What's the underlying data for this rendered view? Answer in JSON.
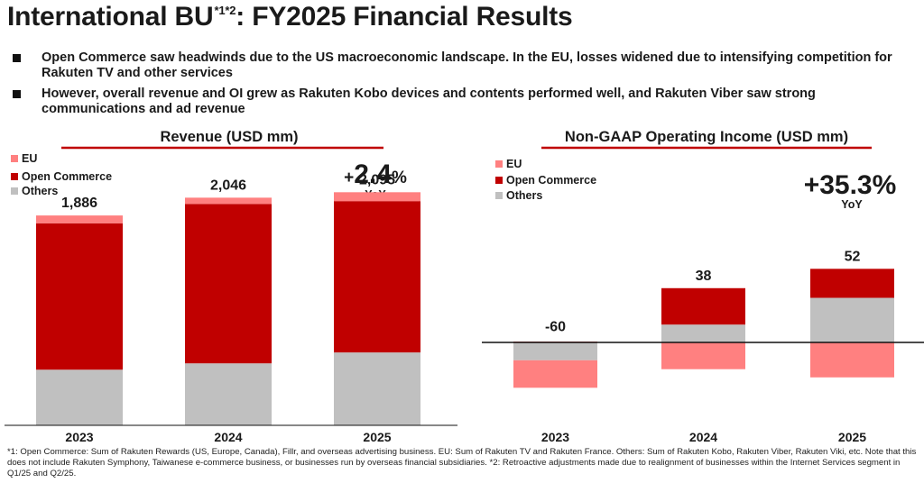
{
  "title": {
    "main": "International BU",
    "sup": "*1*2",
    "rest": ": FY2025 Financial Results"
  },
  "bullets": [
    "Open Commerce saw headwinds due to the US macroeconomic landscape. In the EU, losses widened due to intensifying competition for Rakuten TV and other services",
    "However, overall revenue and OI grew as Rakuten Kobo devices and contents performed well, and Rakuten Viber saw strong communications and ad revenue"
  ],
  "colors": {
    "eu": "#ff8080",
    "open_commerce": "#c00000",
    "others": "#c0c0c0",
    "accent": "#c00000"
  },
  "chart_data": [
    {
      "type": "bar",
      "stacked": true,
      "title": "Revenue (USD mm)",
      "categories": [
        "2023",
        "2024",
        "2025"
      ],
      "series": [
        {
          "name": "Others",
          "values": [
            500,
            557,
            655
          ]
        },
        {
          "name": "Open Commerce",
          "values": [
            1316,
            1433,
            1360
          ]
        },
        {
          "name": "EU",
          "values": [
            70,
            56,
            80
          ]
        }
      ],
      "totals": [
        "1,886",
        "2,046",
        "2,095"
      ],
      "legend": [
        "EU",
        "Open Commerce",
        "Others"
      ],
      "growth": {
        "value": "+2.4",
        "unit": "%",
        "label": "YoY"
      },
      "ylim": [
        0,
        2300
      ]
    },
    {
      "type": "bar",
      "stacked": true,
      "title": "Non-GAAP Operating Income (USD mm)",
      "categories": [
        "2023",
        "2024",
        "2025"
      ],
      "series": [
        {
          "name": "Others",
          "values": [
            -24,
            24,
            60
          ]
        },
        {
          "name": "Open Commerce",
          "values": [
            1,
            49,
            39
          ]
        },
        {
          "name": "EU",
          "values": [
            -37,
            -36,
            -47
          ]
        }
      ],
      "totals": [
        "-60",
        "38",
        "52"
      ],
      "legend": [
        "EU",
        "Open Commerce",
        "Others"
      ],
      "growth": {
        "value": "+35.3%",
        "label": "YoY"
      },
      "ylim": [
        -70,
        110
      ]
    }
  ],
  "footnote": "*1: Open Commerce: Sum of Rakuten Rewards (US, Europe, Canada), Fillr, and overseas advertising business. EU: Sum of Rakuten TV and Rakuten France. Others: Sum of Rakuten Kobo, Rakuten Viber, Rakuten Viki, etc. Note that this does not include Rakuten Symphony, Taiwanese e-commerce business, or businesses run by overseas financial subsidiaries. *2: Retroactive adjustments made due to realignment of businesses within the Internet Services segment in Q1/25 and Q2/25."
}
